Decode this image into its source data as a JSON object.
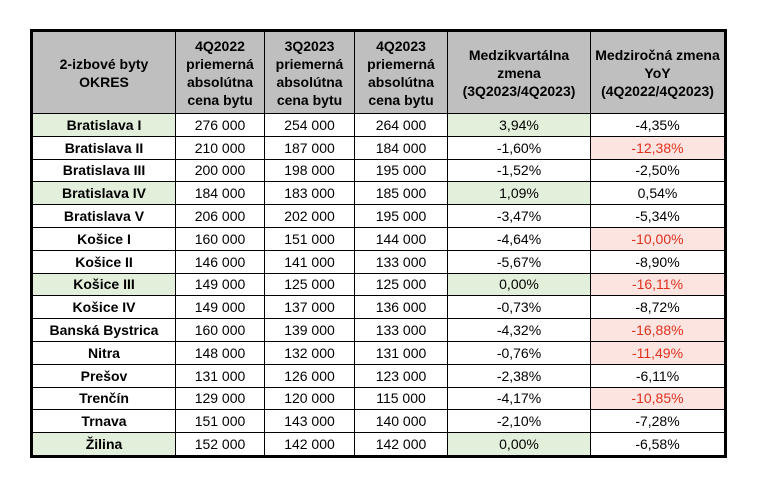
{
  "table": {
    "headers": [
      "2-izbové byty\nOKRES",
      "4Q2022\npriemerná\nabsolútna\ncena bytu",
      "3Q2023\npriemerná\nabsolútna\ncena bytu",
      "4Q2023\npriemerná\nabsolútna\ncena bytu",
      "Medzikvartálna\nzmena\n(3Q2023/4Q2023)",
      "Medziročná zmena\nYoY\n(4Q2022/4Q2023)"
    ],
    "rows": [
      {
        "district": "Bratislava I",
        "q4_2022": "276 000",
        "q3_2023": "254 000",
        "q4_2023": "264 000",
        "qoq": "3,94%",
        "yoy": "-4,35%",
        "highlight": true,
        "yoy_alert": false
      },
      {
        "district": "Bratislava II",
        "q4_2022": "210 000",
        "q3_2023": "187 000",
        "q4_2023": "184 000",
        "qoq": "-1,60%",
        "yoy": "-12,38%",
        "highlight": false,
        "yoy_alert": true
      },
      {
        "district": "Bratislava III",
        "q4_2022": "200 000",
        "q3_2023": "198 000",
        "q4_2023": "195 000",
        "qoq": "-1,52%",
        "yoy": "-2,50%",
        "highlight": false,
        "yoy_alert": false
      },
      {
        "district": "Bratislava IV",
        "q4_2022": "184 000",
        "q3_2023": "183 000",
        "q4_2023": "185 000",
        "qoq": "1,09%",
        "yoy": "0,54%",
        "highlight": true,
        "yoy_alert": false
      },
      {
        "district": "Bratislava V",
        "q4_2022": "206 000",
        "q3_2023": "202 000",
        "q4_2023": "195 000",
        "qoq": "-3,47%",
        "yoy": "-5,34%",
        "highlight": false,
        "yoy_alert": false
      },
      {
        "district": "Košice I",
        "q4_2022": "160 000",
        "q3_2023": "151 000",
        "q4_2023": "144 000",
        "qoq": "-4,64%",
        "yoy": "-10,00%",
        "highlight": false,
        "yoy_alert": true
      },
      {
        "district": "Košice II",
        "q4_2022": "146 000",
        "q3_2023": "141 000",
        "q4_2023": "133 000",
        "qoq": "-5,67%",
        "yoy": "-8,90%",
        "highlight": false,
        "yoy_alert": false
      },
      {
        "district": "Košice III",
        "q4_2022": "149 000",
        "q3_2023": "125 000",
        "q4_2023": "125 000",
        "qoq": "0,00%",
        "yoy": "-16,11%",
        "highlight": true,
        "yoy_alert": true
      },
      {
        "district": "Košice IV",
        "q4_2022": "149 000",
        "q3_2023": "137 000",
        "q4_2023": "136 000",
        "qoq": "-0,73%",
        "yoy": "-8,72%",
        "highlight": false,
        "yoy_alert": false
      },
      {
        "district": "Banská Bystrica",
        "q4_2022": "160 000",
        "q3_2023": "139 000",
        "q4_2023": "133 000",
        "qoq": "-4,32%",
        "yoy": "-16,88%",
        "highlight": false,
        "yoy_alert": true
      },
      {
        "district": "Nitra",
        "q4_2022": "148 000",
        "q3_2023": "132 000",
        "q4_2023": "131 000",
        "qoq": "-0,76%",
        "yoy": "-11,49%",
        "highlight": false,
        "yoy_alert": true
      },
      {
        "district": "Prešov",
        "q4_2022": "131 000",
        "q3_2023": "126 000",
        "q4_2023": "123 000",
        "qoq": "-2,38%",
        "yoy": "-6,11%",
        "highlight": false,
        "yoy_alert": false
      },
      {
        "district": "Trenčín",
        "q4_2022": "129 000",
        "q3_2023": "120 000",
        "q4_2023": "115 000",
        "qoq": "-4,17%",
        "yoy": "-10,85%",
        "highlight": false,
        "yoy_alert": true
      },
      {
        "district": "Trnava",
        "q4_2022": "151 000",
        "q3_2023": "143 000",
        "q4_2023": "140 000",
        "qoq": "-2,10%",
        "yoy": "-7,28%",
        "highlight": false,
        "yoy_alert": false
      },
      {
        "district": "Žilina",
        "q4_2022": "152 000",
        "q3_2023": "142 000",
        "q4_2023": "142 000",
        "qoq": "0,00%",
        "yoy": "-6,58%",
        "highlight": true,
        "yoy_alert": false
      }
    ]
  },
  "colors": {
    "header_bg": "#bfbfbf",
    "highlight_green": "#e2efda",
    "alert_bg": "#fce4e0",
    "alert_text": "#e0301e"
  }
}
